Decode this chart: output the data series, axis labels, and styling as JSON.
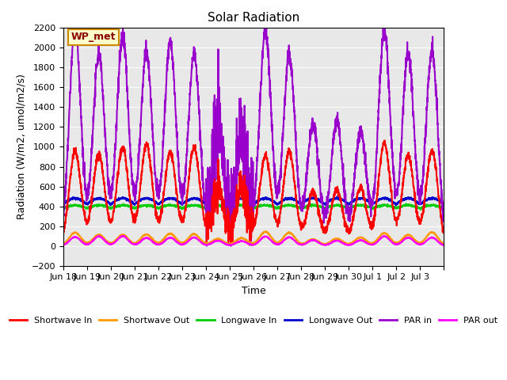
{
  "title": "Solar Radiation",
  "xlabel": "Time",
  "ylabel": "Radiation (W/m2, umol/m2/s)",
  "ylim": [
    -200,
    2200
  ],
  "yticks": [
    -200,
    0,
    200,
    400,
    600,
    800,
    1000,
    1200,
    1400,
    1600,
    1800,
    2000,
    2200
  ],
  "bg_color": "#e8e8e8",
  "annotation_text": "WP_met",
  "annotation_bg": "#ffffcc",
  "annotation_border": "#cc8800",
  "annotation_text_color": "#8b0000",
  "legend_entries": [
    "Shortwave In",
    "Shortwave Out",
    "Longwave In",
    "Longwave Out",
    "PAR in",
    "PAR out"
  ],
  "line_colors": [
    "#ff0000",
    "#ff9900",
    "#00cc00",
    "#0000cc",
    "#9900cc",
    "#ff00ff"
  ],
  "line_widths": [
    1.5,
    1.5,
    1.5,
    1.5,
    1.5,
    1.5
  ],
  "n_days": 16,
  "tick_positions": [
    0,
    1,
    2,
    3,
    4,
    5,
    6,
    7,
    8,
    9,
    10,
    11,
    12,
    13,
    14,
    15,
    16
  ],
  "tick_labels": [
    "Jun 18",
    "Jun 19",
    "Jun 20",
    "Jun 21",
    "Jun 22",
    "Jun 23",
    "Jun 24",
    "Jun 25",
    "Jun 26",
    "Jun 27",
    "Jun 28",
    "Jun 29",
    "Jun 30",
    "Jul 1",
    "Jul 2",
    "Jul 3",
    ""
  ],
  "shortwave_in_peak": 1000,
  "shortwave_out_peak": 130,
  "longwave_in_base": 380,
  "longwave_out_base": 420,
  "par_in_peak": 2100,
  "par_out_peak": 90,
  "samples_per_day": 144,
  "cloudy_days": [
    6,
    7,
    10,
    11,
    12
  ],
  "cloudy_factor": 0.6
}
